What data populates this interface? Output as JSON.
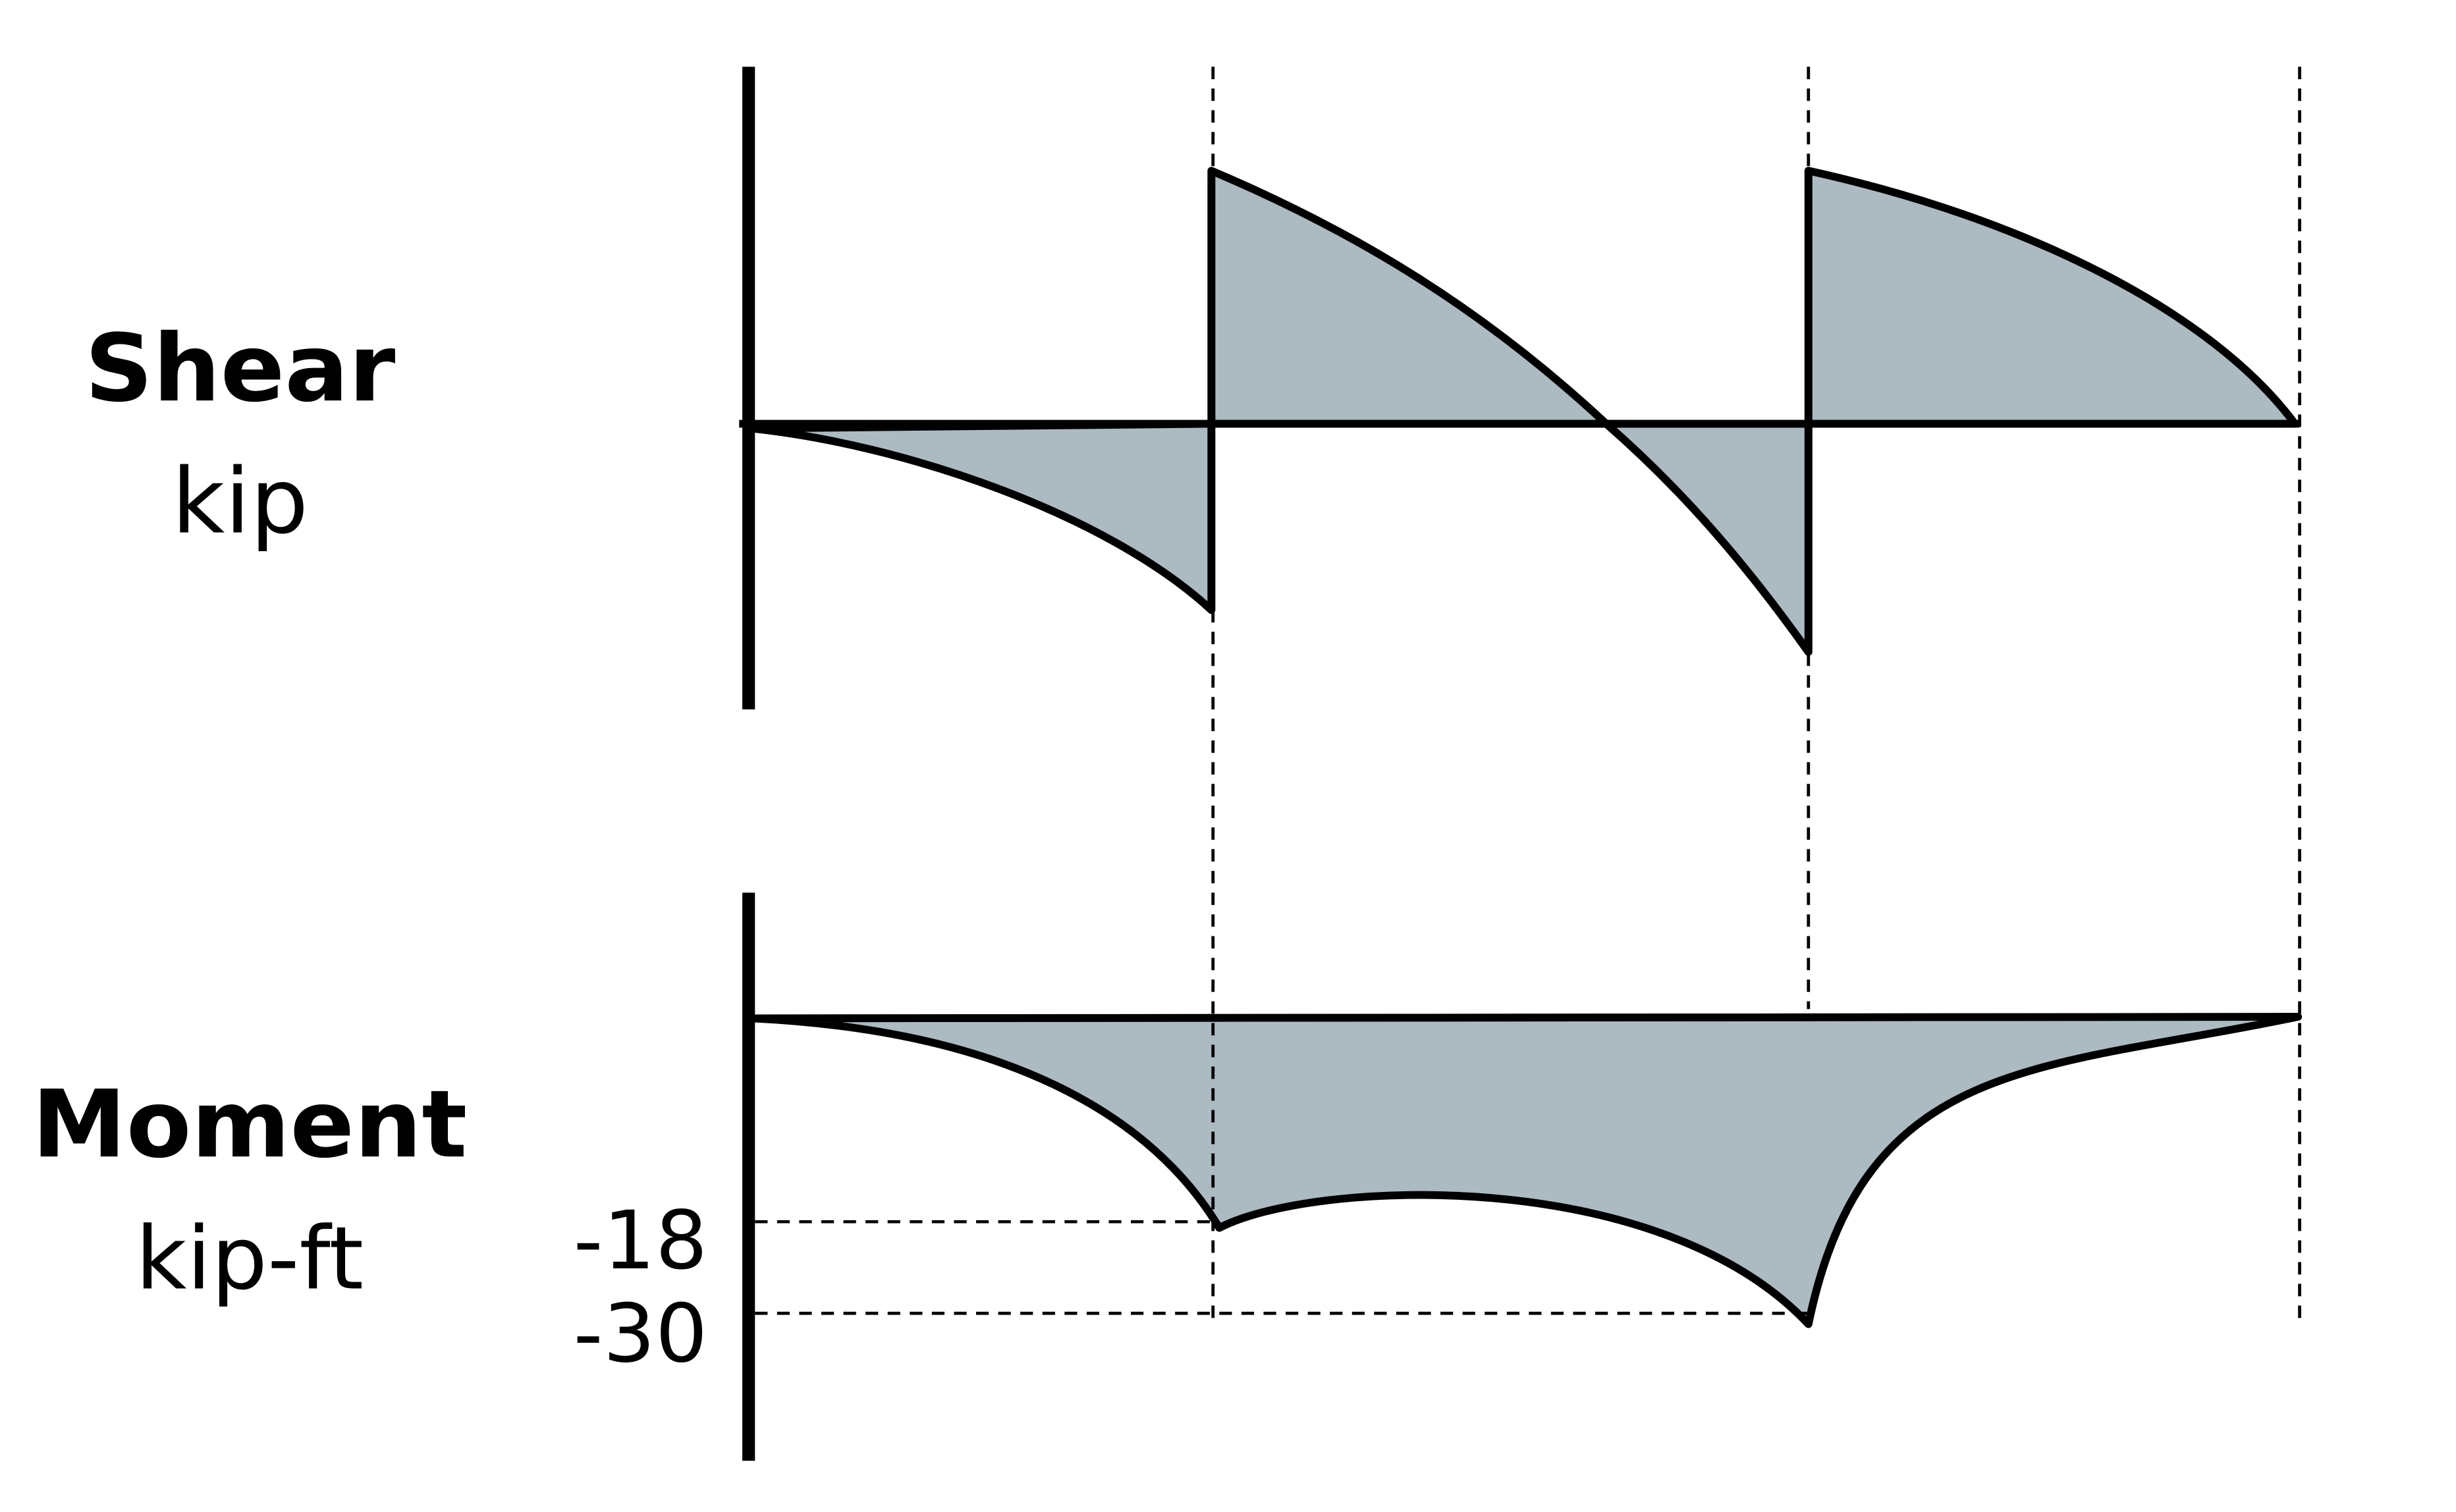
{
  "shear": {
    "title": "Shear",
    "unit": "kip"
  },
  "moment": {
    "title": "Moment",
    "unit": "kip-ft",
    "value_a": "-18",
    "value_b": "-30"
  },
  "colors": {
    "fill": "#acbac1",
    "stroke": "#000000",
    "background": "#ffffff"
  }
}
